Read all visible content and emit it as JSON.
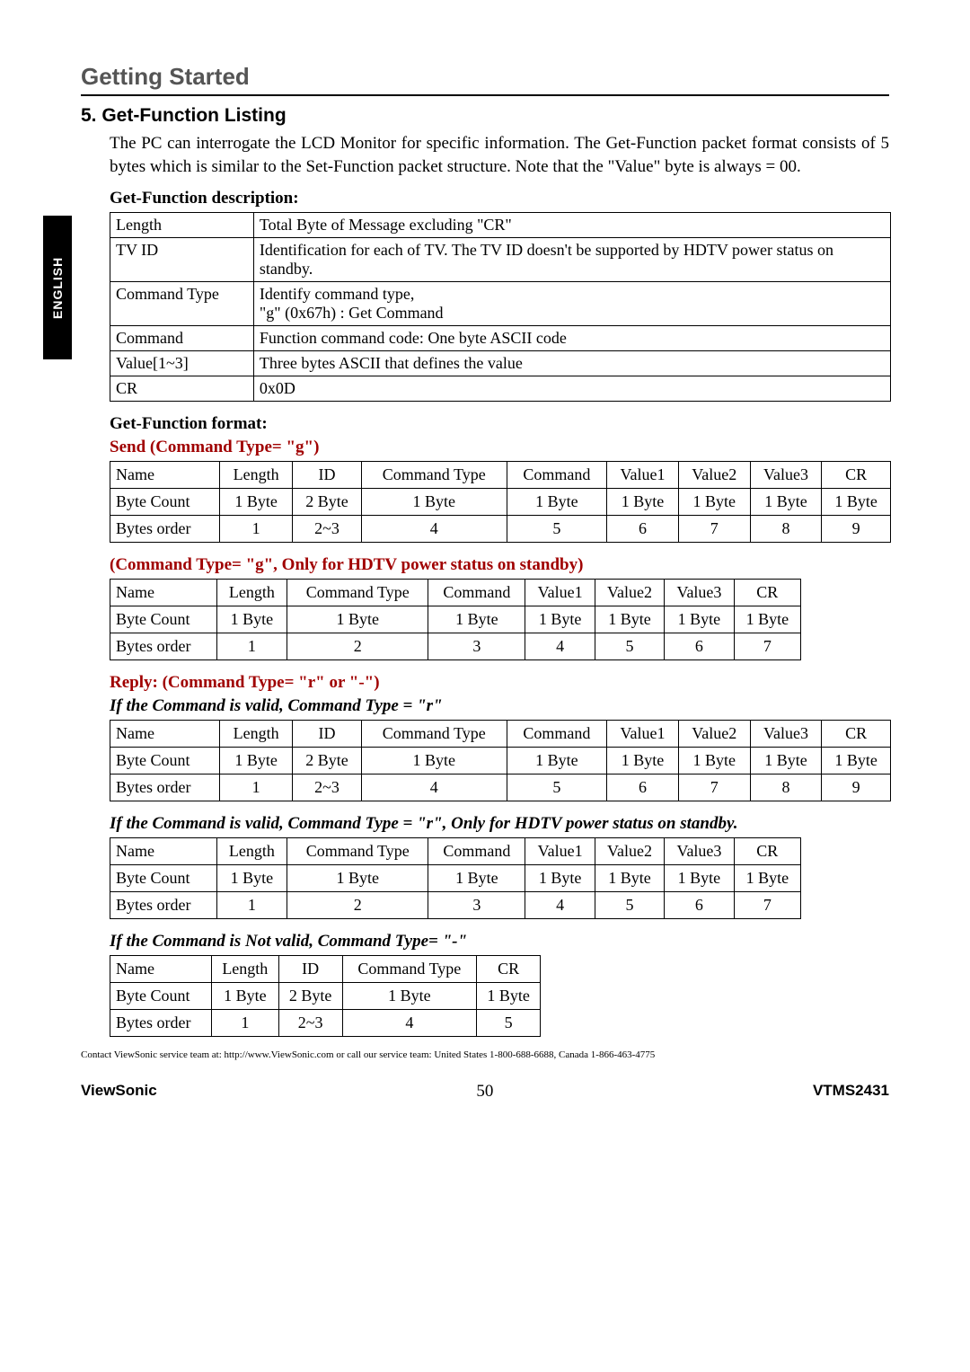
{
  "tab_label": "ENGLISH",
  "section_header": "Getting Started",
  "listing_title": "5. Get-Function Listing",
  "intro_text": "The PC can interrogate the LCD Monitor for specific information. The Get-Function packet format consists of 5 bytes which is similar to the Set-Function packet structure. Note that the \"Value\" byte is always = 00.",
  "desc_label": "Get-Function description:",
  "desc_table": {
    "rows": [
      [
        "Length",
        "Total Byte of Message excluding \"CR\""
      ],
      [
        "TV ID",
        "Identification for each of TV. The TV ID doesn't be supported by HDTV power status on standby."
      ],
      [
        "Command Type",
        "Identify command type,\n\"g\" (0x67h) : Get Command"
      ],
      [
        "Command",
        "Function command code: One byte ASCII code"
      ],
      [
        "Value[1~3]",
        "Three bytes ASCII that defines the value"
      ],
      [
        "CR",
        "0x0D"
      ]
    ],
    "col_widths": [
      "160px",
      "710px"
    ]
  },
  "format_label": "Get-Function format:",
  "send_label": "Send (Command Type= \"g\")",
  "send_table": {
    "head": [
      "Name",
      "Length",
      "ID",
      "Command Type",
      "Command",
      "Value1",
      "Value2",
      "Value3",
      "CR"
    ],
    "rows": [
      [
        "Byte Count",
        "1 Byte",
        "2 Byte",
        "1 Byte",
        "1 Byte",
        "1 Byte",
        "1 Byte",
        "1 Byte",
        "1 Byte"
      ],
      [
        "Bytes order",
        "1",
        "2~3",
        "4",
        "5",
        "6",
        "7",
        "8",
        "9"
      ]
    ]
  },
  "standby_label": "(Command Type= \"g\", Only for HDTV power status on standby)",
  "standby_table": {
    "head": [
      "Name",
      "Length",
      "Command Type",
      "Command",
      "Value1",
      "Value2",
      "Value3",
      "CR"
    ],
    "rows": [
      [
        "Byte Count",
        "1 Byte",
        "1 Byte",
        "1 Byte",
        "1 Byte",
        "1 Byte",
        "1 Byte",
        "1 Byte"
      ],
      [
        "Bytes order",
        "1",
        "2",
        "3",
        "4",
        "5",
        "6",
        "7"
      ]
    ]
  },
  "reply_label": "Reply: (Command Type= \"r\" or \"-\")",
  "valid_r_label": "If the Command is valid, Command Type = \"r\"",
  "valid_r_table": {
    "head": [
      "Name",
      "Length",
      "ID",
      "Command Type",
      "Command",
      "Value1",
      "Value2",
      "Value3",
      "CR"
    ],
    "rows": [
      [
        "Byte Count",
        "1 Byte",
        "2 Byte",
        "1 Byte",
        "1 Byte",
        "1 Byte",
        "1 Byte",
        "1 Byte",
        "1 Byte"
      ],
      [
        "Bytes order",
        "1",
        "2~3",
        "4",
        "5",
        "6",
        "7",
        "8",
        "9"
      ]
    ]
  },
  "valid_r_standby_label": "If the Command is valid, Command Type = \"r\", Only for HDTV power status on standby.",
  "valid_r_standby_table": {
    "head": [
      "Name",
      "Length",
      "Command Type",
      "Command",
      "Value1",
      "Value2",
      "Value3",
      "CR"
    ],
    "rows": [
      [
        "Byte Count",
        "1 Byte",
        "1 Byte",
        "1 Byte",
        "1 Byte",
        "1 Byte",
        "1 Byte",
        "1 Byte"
      ],
      [
        "Bytes order",
        "1",
        "2",
        "3",
        "4",
        "5",
        "6",
        "7"
      ]
    ]
  },
  "invalid_label": "If the Command is Not valid, Command Type= \"-\"",
  "invalid_table": {
    "head": [
      "Name",
      "Length",
      "ID",
      "Command Type",
      "CR"
    ],
    "rows": [
      [
        "Byte Count",
        "1 Byte",
        "2 Byte",
        "1 Byte",
        "1 Byte"
      ],
      [
        "Bytes order",
        "1",
        "2~3",
        "4",
        "5"
      ]
    ]
  },
  "contact_text": "Contact ViewSonic service team at: http://www.ViewSonic.com or call our service team: United States 1-800-688-6688, Canada 1-866-463-4775",
  "footer": {
    "brand": "ViewSonic",
    "page": "50",
    "model": "VTMS2431"
  }
}
